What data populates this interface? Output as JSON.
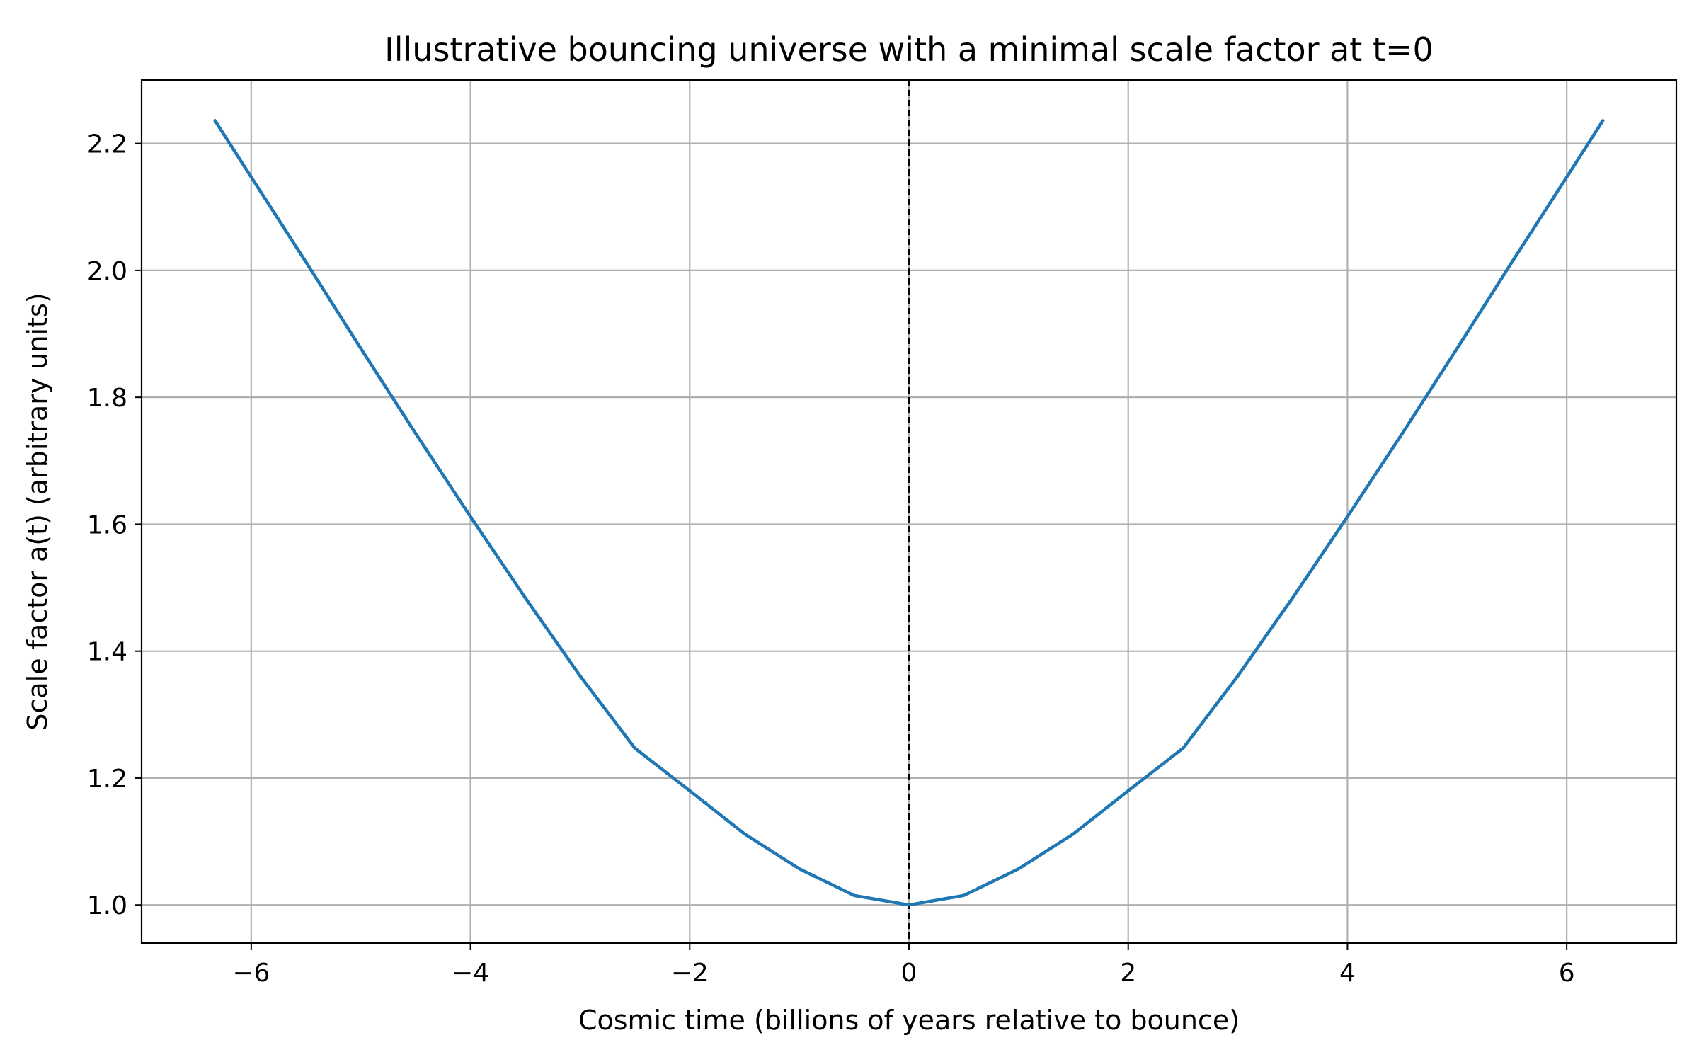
{
  "colors": {
    "series": "#1f77b4",
    "grid": "#b0b0b0",
    "axes": "#000000",
    "background": "#ffffff",
    "bounce_line": "#000000"
  },
  "chart_data": {
    "type": "line",
    "title": "Illustrative bouncing universe with a minimal scale factor at t=0",
    "xlabel": "Cosmic time (billions of years relative to bounce)",
    "ylabel": "Scale factor a(t) (arbitrary units)",
    "xlim": [
      -7.0,
      7.0
    ],
    "ylim": [
      0.94,
      2.3
    ],
    "xticks": [
      -6,
      -4,
      -2,
      0,
      2,
      4,
      6
    ],
    "xtick_labels": [
      "−6",
      "−4",
      "−2",
      "0",
      "2",
      "4",
      "6"
    ],
    "yticks": [
      1.0,
      1.2,
      1.4,
      1.6,
      1.8,
      2.0,
      2.2
    ],
    "ytick_labels": [
      "1.0",
      "1.2",
      "1.4",
      "1.6",
      "1.8",
      "2.0",
      "2.2"
    ],
    "grid": true,
    "bounce_marker": {
      "x": 0,
      "style": "dashed"
    },
    "series": [
      {
        "x": [
          -6.33,
          -6.0,
          -5.5,
          -5.0,
          -4.5,
          -4.0,
          -3.5,
          -3.0,
          -2.5,
          -2.0,
          -1.5,
          -1.0,
          -0.5,
          0.0,
          0.5,
          1.0,
          1.5,
          2.0,
          2.5,
          3.0,
          3.5,
          4.0,
          4.5,
          5.0,
          5.5,
          6.0,
          6.33
        ],
        "y": [
          2.236,
          2.147,
          2.013,
          1.877,
          1.743,
          1.612,
          1.484,
          1.361,
          1.247,
          1.18,
          1.112,
          1.057,
          1.015,
          1.0,
          1.015,
          1.057,
          1.112,
          1.18,
          1.247,
          1.361,
          1.484,
          1.612,
          1.743,
          1.877,
          2.013,
          2.147,
          2.236
        ]
      }
    ]
  }
}
